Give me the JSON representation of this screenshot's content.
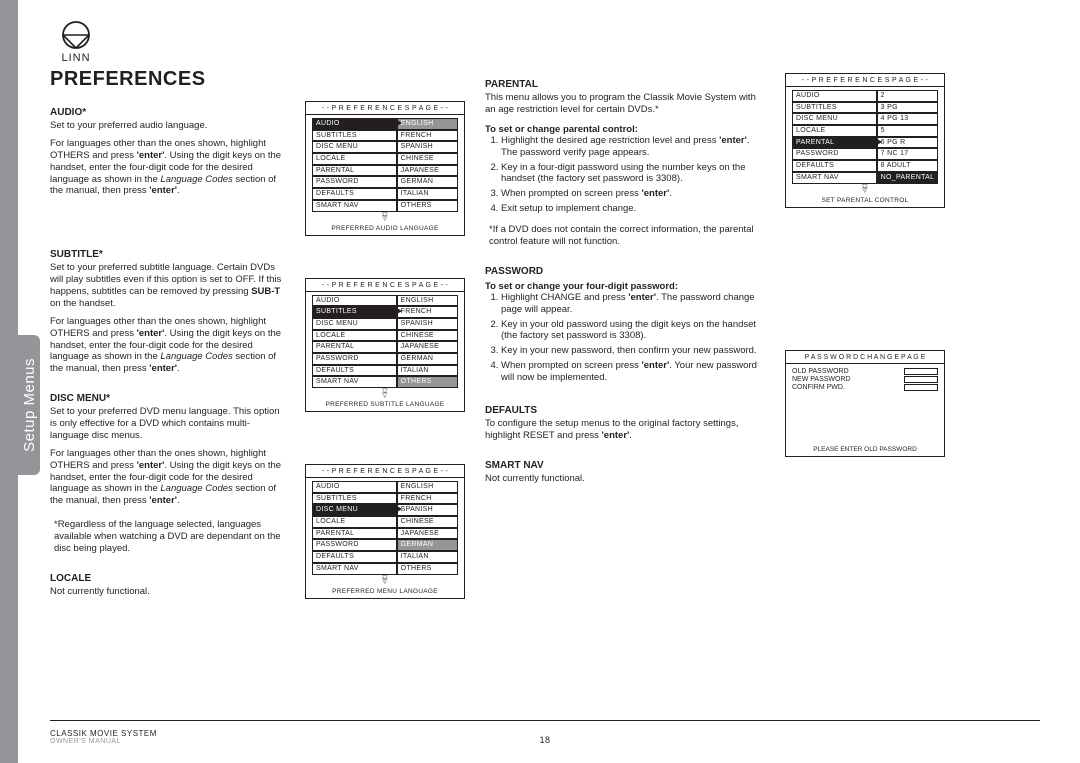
{
  "branding": {
    "name": "LINN"
  },
  "sideTab": "Setup Menus",
  "pageTitle": "PREFERENCES",
  "audio": {
    "heading": "AUDIO*",
    "p1": "Set to your preferred audio language.",
    "p2_a": "For languages other than the ones shown, highlight OTHERS and press ",
    "p2_b": ". Using the digit keys on the handset, enter the four-digit code for the desired language as shown in the ",
    "p2_c": " section of the manual, then press ",
    "enter": "'enter'",
    "langCodes": "Language Codes"
  },
  "subtitle": {
    "heading": "SUBTITLE*",
    "p1_a": "Set to your preferred subtitle language. Certain DVDs will play subtitles even if this option is set to OFF. If this happens, subtitles can be removed by pressing ",
    "p1_b": " on the handset.",
    "subt": "SUB-T",
    "p2_a": "For languages other than the ones shown, highlight OTHERS and press ",
    "p2_b": ". Using the digit keys on the handset, enter the four-digit code for the desired language as shown in the ",
    "p2_c": " section of the manual, then press "
  },
  "discMenu": {
    "heading": "DISC MENU*",
    "p1": "Set to your preferred DVD menu language. This option is only effective for a DVD which contains multi-language disc menus.",
    "p2_a": "For languages other than the ones shown, highlight OTHERS and press ",
    "p2_b": ". Using the digit keys on the handset, enter the four-digit code for the desired language as shown in the ",
    "p2_c": " section of the manual, then press ",
    "note": "*Regardless of the language selected, languages available when watching a DVD are dependant on the disc being played."
  },
  "locale": {
    "heading": "LOCALE",
    "p1": "Not currently functional."
  },
  "parental": {
    "heading": "PARENTAL",
    "intro": "This menu allows you to program the Classik Movie System with an age restriction level for certain DVDs.*",
    "sub": "To set or change parental control:",
    "s1_a": "Highlight the desired age restriction level and press ",
    "s1_b": ". The password verify page appears.",
    "s2": "Key in a four-digit password using the number keys on the handset (the factory set password is 3308).",
    "s3_a": "When prompted on screen press ",
    "s4": "Exit setup to implement change.",
    "note": "*If a DVD does not contain the correct information, the parental control feature will not function."
  },
  "password": {
    "heading": "PASSWORD",
    "sub": "To set or change your four-digit password:",
    "s1_a": "Highlight CHANGE and press ",
    "s1_b": ". The password change page will appear.",
    "s2": "Key in your old password using the digit keys on the handset (the factory set password is 3308).",
    "s3": "Key in your new password, then confirm your new password.",
    "s4_a": "When prompted on screen press ",
    "s4_b": ". Your new password will now be implemented."
  },
  "defaults": {
    "heading": "DEFAULTS",
    "p1_a": "To configure the setup menus to the original factory settings, highlight RESET and press "
  },
  "smartnav": {
    "heading": "SMART NAV",
    "p1": "Not currently functional."
  },
  "menuCommon": {
    "title": "- -  P R E F E R E N C E S   P A G E  - -",
    "leftItems": [
      "AUDIO",
      "SUBTITLES",
      "DISC MENU",
      "LOCALE",
      "PARENTAL",
      "PASSWORD",
      "DEFAULTS",
      "SMART NAV"
    ],
    "langs": [
      "ENGLISH",
      "FRENCH",
      "SPANISH",
      "CHINESE",
      "JAPANESE",
      "GERMAN",
      "ITALIAN",
      "OTHERS"
    ]
  },
  "menuAudio": {
    "footer": "PREFERRED AUDIO LANGUAGE",
    "hlLeft": 0,
    "hlRight": 0
  },
  "menuSub": {
    "footer": "PREFERRED SUBTITLE LANGUAGE",
    "hlLeft": 1,
    "hlRight": 7
  },
  "menuDisc": {
    "footer": "PREFERRED MENU LANGUAGE",
    "hlLeft": 2,
    "hlRight": 5
  },
  "menuParental": {
    "footer": "SET PARENTAL CONTROL",
    "rightItems": [
      "2",
      "3 PG",
      "4 PG 13",
      "5",
      "6 PG R",
      "7 NC 17",
      "8 ADULT",
      "NO_PARENTAL"
    ],
    "hlLeft": 4,
    "hlRight": 7
  },
  "pwBox": {
    "title": "P A S S W O R D   C H A N G E   P A G E",
    "rows": [
      "OLD PASSWORD",
      "NEW PASSWORD",
      "CONFIRM PWD."
    ],
    "footer": "PLEASE ENTER OLD PASSWORD"
  },
  "footer": {
    "title": "CLASSIK MOVIE SYSTEM",
    "sub": "OWNER'S  MANUAL",
    "page": "18"
  }
}
